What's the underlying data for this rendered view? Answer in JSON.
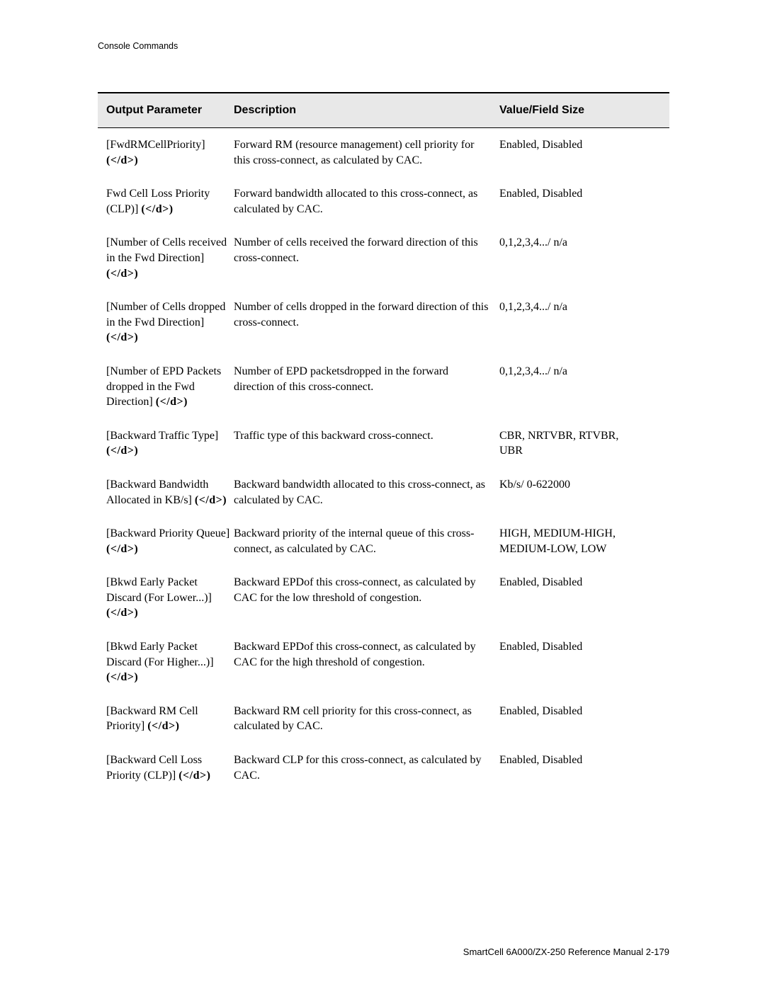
{
  "header_label": "Console Commands",
  "table": {
    "columns": {
      "param": "Output Parameter",
      "desc": "Description",
      "value": "Value/Field Size"
    },
    "rows": [
      {
        "param_text": "[FwdRMCellPriority] ",
        "description": "Forward RM (resource management) cell priority for this cross-connect, as calculated by CAC.",
        "value": "Enabled, Disabled"
      },
      {
        "param_text": "Fwd Cell Loss Priority (CLP)] ",
        "description": "Forward bandwidth allocated to this cross-connect, as calculated by CAC.",
        "value": "Enabled, Disabled"
      },
      {
        "param_text": "[Number of Cells received in the Fwd Direction] ",
        "description": "Number of cells received the forward direction of this cross-connect.",
        "value": "0,1,2,3,4.../ n/a"
      },
      {
        "param_text": "[Number of Cells dropped in the Fwd Direction] ",
        "description": "Number of cells dropped in the forward direction of this cross-connect.",
        "value": "0,1,2,3,4.../ n/a"
      },
      {
        "param_text": "[Number of EPD Packets dropped in the Fwd Direction] ",
        "description": "Number of EPD packetsdropped in the forward direction of this cross-connect.",
        "value": "0,1,2,3,4.../ n/a"
      },
      {
        "param_text": "[Backward Traffic Type] ",
        "description": "Traffic type of this backward cross-connect.",
        "value": "CBR, NRTVBR, RTVBR, UBR"
      },
      {
        "param_text": "[Backward Bandwidth Allocated in KB/s] ",
        "description": "Backward bandwidth allocated to this cross-connect, as calculated by CAC.",
        "value": "Kb/s/ 0-622000"
      },
      {
        "param_text": "[Backward Priority Queue] ",
        "description": "Backward priority of the internal queue of this cross-connect, as calculated by CAC.",
        "value": "HIGH, MEDIUM-HIGH, MEDIUM-LOW, LOW"
      },
      {
        "param_text": "[Bkwd Early Packet Discard (For Lower...)] ",
        "description": "Backward EPDof this cross-connect, as calculated by CAC for the low threshold of congestion.",
        "value": "Enabled, Disabled"
      },
      {
        "param_text": "[Bkwd Early Packet Discard (For Higher...)] ",
        "description": "Backward EPDof this cross-connect, as calculated by CAC for the high threshold of congestion.",
        "value": "Enabled, Disabled"
      },
      {
        "param_text": "[Backward RM Cell Priority] ",
        "description": "Backward RM cell priority for this cross-connect, as calculated by CAC.",
        "value": "Enabled, Disabled"
      },
      {
        "param_text": "[Backward Cell Loss Priority (CLP)] ",
        "description": "Backward CLP for this cross-connect, as calculated by CAC.",
        "value": "Enabled, Disabled"
      }
    ],
    "d_marker": "(</d>)"
  },
  "footer": "SmartCell 6A000/ZX-250 Reference Manual   2-179"
}
